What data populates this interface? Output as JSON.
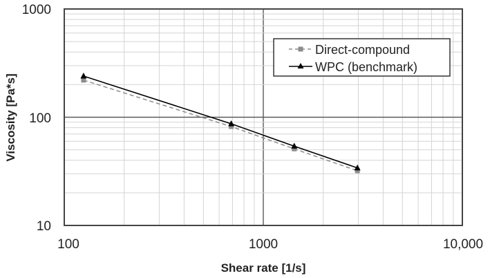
{
  "chart_data": {
    "type": "line",
    "title": "",
    "xlabel": "Shear rate [1/s]",
    "ylabel": "Viscosity [Pa*s]",
    "xscale": "log",
    "yscale": "log",
    "xlim": [
      100,
      10000
    ],
    "ylim": [
      10,
      1000
    ],
    "xticks": [
      100,
      1000,
      10000
    ],
    "xtick_labels": [
      "100",
      "1000",
      "10,000"
    ],
    "yticks": [
      10,
      100,
      1000
    ],
    "ytick_labels": [
      "10",
      "100",
      "1000"
    ],
    "grid": true,
    "legend_position": "upper right",
    "series": [
      {
        "name": "Direct-compound",
        "color": "#8c8c8c",
        "line_style": "dashed",
        "marker": "square",
        "x": [
          125,
          690,
          1430,
          2970
        ],
        "values": [
          220,
          82,
          51,
          32
        ]
      },
      {
        "name": "WPC (benchmark)",
        "color": "#000000",
        "line_style": "solid",
        "marker": "triangle",
        "x": [
          125,
          690,
          1430,
          2970
        ],
        "values": [
          240,
          87,
          54,
          34
        ]
      }
    ]
  }
}
